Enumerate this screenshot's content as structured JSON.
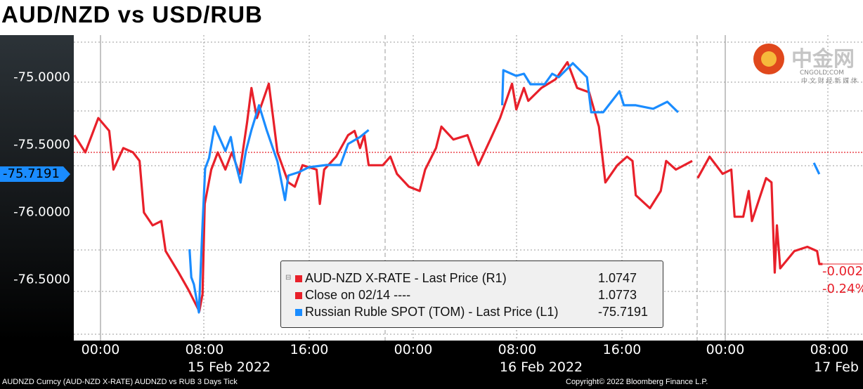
{
  "title": "AUD/NZD vs USD/RUB",
  "footer": {
    "left": "AUDNZD Curncy (AUD-NZD X-RATE) AUDNZD vs RUB 3 Days  Tick",
    "right": "Copyright© 2022 Bloomberg Finance L.P."
  },
  "watermark": {
    "text": "中金网",
    "sub": "CNGOLD.COM",
    "tag": "中 文 财 经 新 媒 体"
  },
  "colors": {
    "aud": "#e8202a",
    "rub": "#1a8cff",
    "close": "#e8202a"
  },
  "chart_data": {
    "type": "line",
    "title": "AUD/NZD vs USD/RUB",
    "x_ticks": [
      "00:00",
      "08:00",
      "16:00",
      "00:00",
      "08:00",
      "16:00",
      "00:00",
      "08:00"
    ],
    "x_dates": [
      "15 Feb 2022",
      "16 Feb 2022",
      "17 Feb"
    ],
    "y_left_ticks": [
      "-75.0000",
      "-75.5000",
      "-76.0000",
      "-76.5000"
    ],
    "y_left_current": "-75.7191",
    "right_annotations": [
      "-0.002",
      "-0.24%"
    ],
    "grid": true,
    "legend_position": "bottom-center",
    "legend": [
      {
        "label": "AUD-NZD X-RATE - Last Price (R1)",
        "value": "1.0747",
        "color": "#e8202a"
      },
      {
        "label": "Close on 02/14 ----",
        "value": "1.0773",
        "color": "#e8202a"
      },
      {
        "label": "Russian Ruble SPOT (TOM) - Last Price (L1)",
        "value": "-75.7191",
        "color": "#1a8cff"
      }
    ],
    "close_level": 1.0773,
    "series": [
      {
        "name": "AUD-NZD X-RATE - Last Price (R1)",
        "axis": "right",
        "segments": [
          [
            [
              "02-14 22:00",
              1.0777
            ],
            [
              "02-14 22:50",
              1.0773
            ],
            [
              "02-14 23:50",
              1.0781
            ],
            [
              "02-15 00:40",
              1.0778
            ],
            [
              "02-15 01:00",
              1.0769
            ],
            [
              "02-15 01:45",
              1.0774
            ],
            [
              "02-15 02:30",
              1.0773
            ],
            [
              "02-15 03:00",
              1.0771
            ],
            [
              "02-15 03:20",
              1.0759
            ],
            [
              "02-15 04:00",
              1.0756
            ],
            [
              "02-15 04:40",
              1.0757
            ],
            [
              "02-15 05:00",
              1.075
            ],
            [
              "02-15 06:00",
              1.0745
            ],
            [
              "02-15 06:45",
              1.0741
            ],
            [
              "02-15 07:35",
              1.0736
            ],
            [
              "02-15 07:50",
              1.074
            ],
            [
              "02-15 08:00",
              1.0761
            ],
            [
              "02-15 08:30",
              1.0769
            ],
            [
              "02-15 09:00",
              1.0773
            ],
            [
              "02-15 09:35",
              1.0769
            ],
            [
              "02-15 10:05",
              1.0773
            ],
            [
              "02-15 10:40",
              1.0768
            ],
            [
              "02-15 11:15",
              1.078
            ],
            [
              "02-15 11:35",
              1.0788
            ],
            [
              "02-15 12:00",
              1.0781
            ],
            [
              "02-15 12:55",
              1.0789
            ],
            [
              "02-15 13:15",
              1.0781
            ],
            [
              "02-15 13:35",
              1.0773
            ],
            [
              "02-15 14:25",
              1.0766
            ],
            [
              "02-15 14:55",
              1.0765
            ],
            [
              "02-15 15:30",
              1.077
            ],
            [
              "02-15 16:35",
              1.0769
            ],
            [
              "02-15 16:50",
              1.0761
            ],
            [
              "02-15 17:10",
              1.0769
            ],
            [
              "02-15 18:05",
              1.0772
            ],
            [
              "02-15 19:00",
              1.0777
            ],
            [
              "02-15 19:30",
              1.0778
            ],
            [
              "02-15 19:55",
              1.0774
            ],
            [
              "02-15 20:15",
              1.0777
            ],
            [
              "02-15 20:35",
              1.077
            ],
            [
              "02-15 21:40",
              1.077
            ],
            [
              "02-15 22:15",
              1.0772
            ],
            [
              "02-15 22:45",
              1.0768
            ],
            [
              "02-15 23:40",
              1.0765
            ],
            [
              "02-16 00:30",
              1.0764
            ],
            [
              "02-16 00:55",
              1.0769
            ],
            [
              "02-16 01:45",
              1.0774
            ],
            [
              "02-16 02:10",
              1.0779
            ],
            [
              "02-16 03:05",
              1.0776
            ],
            [
              "02-16 04:10",
              1.0777
            ],
            [
              "02-16 05:00",
              1.077
            ],
            [
              "02-16 05:55",
              1.0776
            ],
            [
              "02-16 06:40",
              1.0781
            ],
            [
              "02-16 07:35",
              1.0789
            ],
            [
              "02-16 07:55",
              1.0783
            ],
            [
              "02-16 08:30",
              1.0788
            ],
            [
              "02-16 08:50",
              1.0785
            ],
            [
              "02-16 09:50",
              1.0788
            ],
            [
              "02-16 10:55",
              1.079
            ],
            [
              "02-16 11:50",
              1.0794
            ],
            [
              "02-16 12:35",
              1.0788
            ],
            [
              "02-16 13:30",
              1.0787
            ],
            [
              "02-16 14:15",
              1.0779
            ],
            [
              "02-16 14:45",
              1.0766
            ],
            [
              "02-16 15:40",
              1.077
            ],
            [
              "02-16 16:25",
              1.0772
            ],
            [
              "02-16 16:50",
              1.0771
            ],
            [
              "02-16 17:05",
              1.0763
            ],
            [
              "02-16 18:10",
              1.076
            ],
            [
              "02-16 19:00",
              1.0764
            ],
            [
              "02-16 19:25",
              1.0771
            ],
            [
              "02-16 20:10",
              1.0769
            ],
            [
              "02-16 21:25",
              1.0771
            ]
          ],
          [
            [
              "02-16 21:50",
              1.0767
            ],
            [
              "02-16 22:45",
              1.0772
            ],
            [
              "02-16 23:45",
              1.0768
            ],
            [
              "02-17 00:25",
              1.0769
            ],
            [
              "02-17 00:40",
              1.0758
            ],
            [
              "02-17 01:20",
              1.0758
            ],
            [
              "02-17 01:45",
              1.0764
            ],
            [
              "02-17 02:00",
              1.0757
            ],
            [
              "02-17 03:05",
              1.0767
            ],
            [
              "02-17 03:30",
              1.0766
            ],
            [
              "02-17 03:45",
              1.0745
            ],
            [
              "02-17 03:55",
              1.0756
            ],
            [
              "02-17 04:10",
              1.0746
            ],
            [
              "02-17 05:15",
              1.075
            ],
            [
              "02-17 06:15",
              1.0751
            ],
            [
              "02-17 07:00",
              1.075
            ],
            [
              "02-17 07:10",
              1.0747
            ],
            [
              "02-17 07:25",
              1.0747
            ]
          ]
        ]
      },
      {
        "name": "Russian Ruble SPOT (TOM) - Last Price (L1)",
        "axis": "left",
        "segments": [
          [
            [
              "02-15 06:50",
              -76.276
            ],
            [
              "02-15 06:58",
              -76.484
            ],
            [
              "02-15 07:10",
              -76.536
            ],
            [
              "02-15 07:33",
              -76.745
            ],
            [
              "02-15 07:50",
              -76.094
            ],
            [
              "02-15 08:02",
              -75.677
            ],
            [
              "02-15 08:20",
              -75.599
            ],
            [
              "02-15 08:45",
              -75.365
            ],
            [
              "02-15 09:35",
              -75.547
            ],
            [
              "02-15 10:00",
              -75.443
            ],
            [
              "02-15 10:20",
              -75.625
            ],
            [
              "02-15 10:45",
              -75.781
            ],
            [
              "02-15 11:10",
              -75.547
            ],
            [
              "02-15 11:35",
              -75.391
            ],
            [
              "02-15 12:10",
              -75.208
            ],
            [
              "02-15 12:45",
              -75.391
            ],
            [
              "02-15 13:35",
              -75.625
            ],
            [
              "02-15 14:10",
              -75.911
            ],
            [
              "02-15 14:25",
              -75.729
            ],
            [
              "02-15 15:15",
              -75.703
            ],
            [
              "02-15 16:00",
              -75.667
            ],
            [
              "02-15 17:20",
              -75.651
            ],
            [
              "02-15 18:25",
              -75.651
            ],
            [
              "02-15 19:00",
              -75.495
            ],
            [
              "02-15 19:55",
              -75.443
            ],
            [
              "02-15 20:35",
              -75.391
            ]
          ],
          [
            [
              "02-16 06:50",
              -75.208
            ],
            [
              "02-16 06:55",
              -74.948
            ],
            [
              "02-16 07:55",
              -74.99
            ],
            [
              "02-16 08:30",
              -74.974
            ],
            [
              "02-16 09:00",
              -75.052
            ],
            [
              "02-16 10:05",
              -75.052
            ],
            [
              "02-16 10:40",
              -74.974
            ],
            [
              "02-16 11:10",
              -75.0
            ],
            [
              "02-16 12:15",
              -74.896
            ],
            [
              "02-16 13:20",
              -75.0
            ],
            [
              "02-16 13:40",
              -75.26
            ],
            [
              "02-16 14:35",
              -75.26
            ],
            [
              "02-16 15:50",
              -75.104
            ],
            [
              "02-16 16:10",
              -75.208
            ],
            [
              "02-16 17:05",
              -75.208
            ],
            [
              "02-16 18:25",
              -75.234
            ],
            [
              "02-16 19:30",
              -75.182
            ],
            [
              "02-16 20:20",
              -75.26
            ]
          ],
          [
            [
              "02-17 06:45",
              -75.635
            ],
            [
              "02-17 07:10",
              -75.719
            ]
          ]
        ]
      }
    ]
  }
}
